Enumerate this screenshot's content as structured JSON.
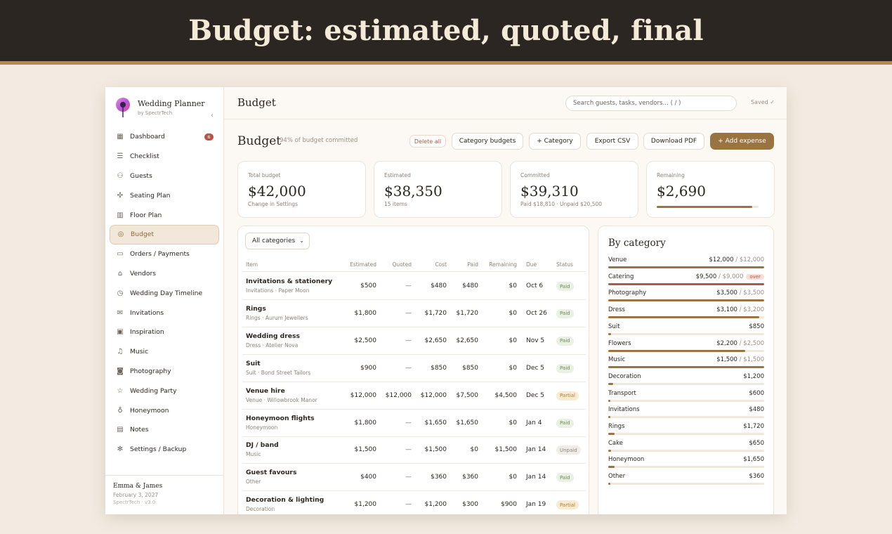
{
  "banner_title": "Budget: estimated, quoted, final",
  "app": {
    "name": "Wedding Planner",
    "by": "by SpectrTech",
    "collapse_icon": "chevron-left-icon"
  },
  "nav": [
    {
      "label": "Dashboard",
      "icon": "grid-icon",
      "badge": "6"
    },
    {
      "label": "Checklist",
      "icon": "list-icon"
    },
    {
      "label": "Guests",
      "icon": "users-icon"
    },
    {
      "label": "Seating Plan",
      "icon": "network-icon"
    },
    {
      "label": "Floor Plan",
      "icon": "layout-icon"
    },
    {
      "label": "Budget",
      "icon": "coin-icon",
      "active": true
    },
    {
      "label": "Orders / Payments",
      "icon": "card-icon"
    },
    {
      "label": "Vendors",
      "icon": "store-icon"
    },
    {
      "label": "Wedding Day Timeline",
      "icon": "clock-icon"
    },
    {
      "label": "Invitations",
      "icon": "mail-icon"
    },
    {
      "label": "Inspiration",
      "icon": "image-icon"
    },
    {
      "label": "Music",
      "icon": "music-icon"
    },
    {
      "label": "Photography",
      "icon": "camera-icon"
    },
    {
      "label": "Wedding Party",
      "icon": "star-icon"
    },
    {
      "label": "Honeymoon",
      "icon": "user-icon"
    },
    {
      "label": "Notes",
      "icon": "note-icon"
    },
    {
      "label": "Settings / Backup",
      "icon": "gear-icon"
    }
  ],
  "footer": {
    "couple": "Emma & James",
    "date": "February 3, 2027",
    "version": "SpectrTech · v3.0"
  },
  "topbar": {
    "title": "Budget",
    "search_placeholder": "Search guests, tasks, vendors…  ( / )",
    "saved": "Saved ✓"
  },
  "header": {
    "title": "Budget",
    "subtitle": "94% of budget committed",
    "delete_all": "Delete all",
    "category_budgets": "Category budgets",
    "add_category": "+ Category",
    "export_csv": "Export CSV",
    "download_pdf": "Download PDF",
    "add_expense": "+ Add expense"
  },
  "stats": [
    {
      "label": "Total budget",
      "value": "$42,000",
      "sub": "Change in Settings"
    },
    {
      "label": "Estimated",
      "value": "$38,350",
      "sub": "15 items"
    },
    {
      "label": "Committed",
      "value": "$39,310",
      "sub": "Paid $18,810 · Unpaid $20,500"
    },
    {
      "label": "Remaining",
      "value": "$2,690",
      "progress": 0.94
    }
  ],
  "filter": {
    "selected": "All categories"
  },
  "table": {
    "columns": [
      "Item",
      "Estimated",
      "Quoted",
      "Cost",
      "Paid",
      "Remaining",
      "Due",
      "Status"
    ],
    "rows": [
      {
        "name": "Invitations & stationery",
        "sub": "Invitations · Paper Moon",
        "estimated": "$500",
        "quoted": "—",
        "cost": "$480",
        "paid": "$480",
        "remaining": "$0",
        "due": "Oct 6",
        "status": "Paid"
      },
      {
        "name": "Rings",
        "sub": "Rings · Aurum Jewellers",
        "estimated": "$1,800",
        "quoted": "—",
        "cost": "$1,720",
        "paid": "$1,720",
        "remaining": "$0",
        "due": "Oct 26",
        "status": "Paid"
      },
      {
        "name": "Wedding dress",
        "sub": "Dress · Atelier Nova",
        "estimated": "$2,500",
        "quoted": "—",
        "cost": "$2,650",
        "paid": "$2,650",
        "remaining": "$0",
        "due": "Nov 5",
        "status": "Paid"
      },
      {
        "name": "Suit",
        "sub": "Suit · Bond Street Tailors",
        "estimated": "$900",
        "quoted": "—",
        "cost": "$850",
        "paid": "$850",
        "remaining": "$0",
        "due": "Dec 5",
        "status": "Paid"
      },
      {
        "name": "Venue hire",
        "sub": "Venue · Willowbrook Manor",
        "estimated": "$12,000",
        "quoted": "$12,000",
        "cost": "$12,000",
        "paid": "$7,500",
        "remaining": "$4,500",
        "due": "Dec 5",
        "status": "Partial"
      },
      {
        "name": "Honeymoon flights",
        "sub": "Honeymoon",
        "estimated": "$1,800",
        "quoted": "—",
        "cost": "$1,650",
        "paid": "$1,650",
        "remaining": "$0",
        "due": "Jan 4",
        "status": "Paid"
      },
      {
        "name": "DJ / band",
        "sub": "Music",
        "estimated": "$1,500",
        "quoted": "—",
        "cost": "$1,500",
        "paid": "$0",
        "remaining": "$1,500",
        "due": "Jan 14",
        "status": "Unpaid"
      },
      {
        "name": "Guest favours",
        "sub": "Other",
        "estimated": "$400",
        "quoted": "—",
        "cost": "$360",
        "paid": "$360",
        "remaining": "$0",
        "due": "Jan 14",
        "status": "Paid"
      },
      {
        "name": "Decoration & lighting",
        "sub": "Decoration",
        "estimated": "$1,200",
        "quoted": "—",
        "cost": "$1,200",
        "paid": "$300",
        "remaining": "$900",
        "due": "Jan 19",
        "status": "Partial"
      }
    ]
  },
  "by_category": {
    "title": "By category",
    "items": [
      {
        "name": "Venue",
        "spent": "$12,000",
        "budget": "$12,000",
        "fill": 1.0
      },
      {
        "name": "Catering",
        "spent": "$9,500",
        "budget": "$9,000",
        "over": "over",
        "fill": 1.0
      },
      {
        "name": "Photography",
        "spent": "$3,500",
        "budget": "$3,500",
        "fill": 1.0
      },
      {
        "name": "Dress",
        "spent": "$3,100",
        "budget": "$3,200",
        "fill": 0.97
      },
      {
        "name": "Suit",
        "spent": "$850",
        "fill": 0.02
      },
      {
        "name": "Flowers",
        "spent": "$2,200",
        "budget": "$2,500",
        "fill": 0.88
      },
      {
        "name": "Music",
        "spent": "$1,500",
        "budget": "$1,500",
        "fill": 1.0
      },
      {
        "name": "Decoration",
        "spent": "$1,200",
        "fill": 0.03
      },
      {
        "name": "Transport",
        "spent": "$600",
        "fill": 0.015
      },
      {
        "name": "Invitations",
        "spent": "$480",
        "fill": 0.012
      },
      {
        "name": "Rings",
        "spent": "$1,720",
        "fill": 0.04
      },
      {
        "name": "Cake",
        "spent": "$650",
        "fill": 0.016
      },
      {
        "name": "Honeymoon",
        "spent": "$1,650",
        "fill": 0.04
      },
      {
        "name": "Other",
        "spent": "$360",
        "fill": 0.009
      }
    ]
  },
  "colors": {
    "accent": "#9a7440",
    "danger": "#b65445",
    "dark": "#2b2621",
    "paid": "#6b8a55",
    "partial": "#b07f2e"
  }
}
